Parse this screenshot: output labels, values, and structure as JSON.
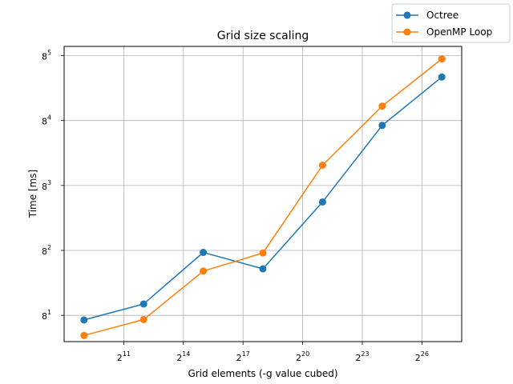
{
  "chart_data": {
    "type": "line",
    "title": "Grid size scaling",
    "xlabel": "Grid elements (-g value cubed)",
    "ylabel": "Time [ms]",
    "xscale": "log2",
    "yscale": "log8",
    "grid": true,
    "legend_position": "top-right",
    "x": [
      512,
      4096,
      32768,
      262144,
      2097152,
      16777216,
      134217728
    ],
    "x_ticks": [
      {
        "value": 2048,
        "base": "2",
        "exp": "11"
      },
      {
        "value": 16384,
        "base": "2",
        "exp": "14"
      },
      {
        "value": 131072,
        "base": "2",
        "exp": "17"
      },
      {
        "value": 1048576,
        "base": "2",
        "exp": "20"
      },
      {
        "value": 8388608,
        "base": "2",
        "exp": "23"
      },
      {
        "value": 67108864,
        "base": "2",
        "exp": "26"
      }
    ],
    "y_ticks": [
      {
        "value": 8,
        "base": "8",
        "exp": "1"
      },
      {
        "value": 64,
        "base": "8",
        "exp": "2"
      },
      {
        "value": 512,
        "base": "8",
        "exp": "3"
      },
      {
        "value": 4096,
        "base": "8",
        "exp": "4"
      },
      {
        "value": 32768,
        "base": "8",
        "exp": "5"
      }
    ],
    "series": [
      {
        "name": "Octree",
        "color": "#1f77b4",
        "values": [
          6.9,
          11.5,
          60.0,
          35.5,
          302,
          3500,
          16500
        ]
      },
      {
        "name": "OpenMP Loop",
        "color": "#ff7f0e",
        "values": [
          4.2,
          7.0,
          33.0,
          59.0,
          980,
          6500,
          29500
        ]
      }
    ]
  }
}
